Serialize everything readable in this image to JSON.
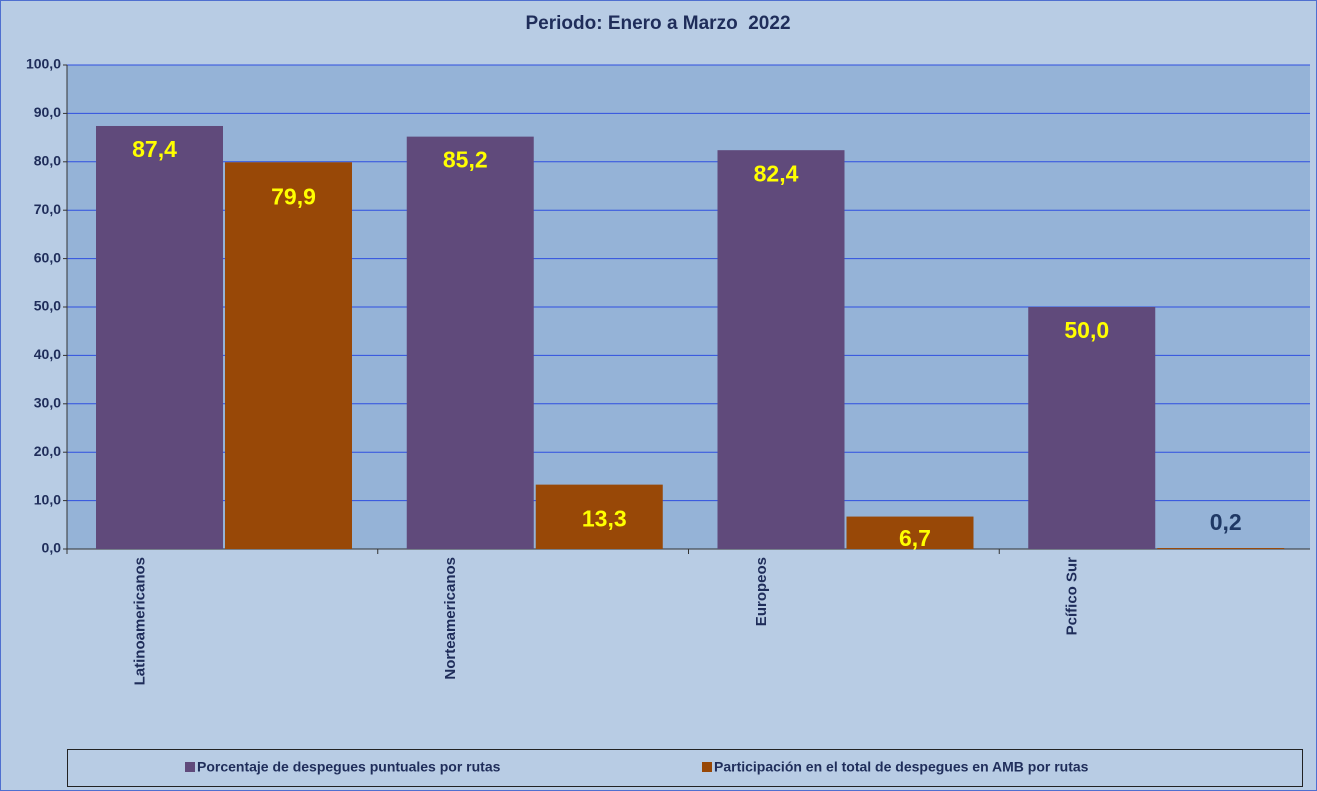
{
  "chart_data": {
    "type": "bar",
    "title": "Periodo: Enero a Marzo  2022",
    "categories": [
      "Latinoamericanos",
      "Norteamericanos",
      "Europeos",
      "Pcífico Sur"
    ],
    "series": [
      {
        "name": "Porcentaje de despegues puntuales por rutas",
        "color": "#604a7b",
        "values": [
          87.4,
          85.2,
          82.4,
          50.0
        ],
        "value_labels": [
          "87,4",
          "85,2",
          "82,4",
          "50,0"
        ]
      },
      {
        "name": "Participación en el total de despegues en AMB por rutas",
        "color": "#984807",
        "values": [
          79.9,
          13.3,
          6.7,
          0.2
        ],
        "value_labels": [
          "79,9",
          "13,3",
          "6,7",
          "0,2"
        ]
      }
    ],
    "ylim": [
      0,
      100
    ],
    "yticks": [
      {
        "value": 0,
        "label": "0,0"
      },
      {
        "value": 10,
        "label": "10,0"
      },
      {
        "value": 20,
        "label": "20,0"
      },
      {
        "value": 30,
        "label": "30,0"
      },
      {
        "value": 40,
        "label": "40,0"
      },
      {
        "value": 50,
        "label": "50,0"
      },
      {
        "value": 60,
        "label": "60,0"
      },
      {
        "value": 70,
        "label": "70,0"
      },
      {
        "value": 80,
        "label": "80,0"
      },
      {
        "value": 90,
        "label": "90,0"
      },
      {
        "value": 100,
        "label": "100,0"
      }
    ],
    "grid": true,
    "legend": "bottom"
  }
}
